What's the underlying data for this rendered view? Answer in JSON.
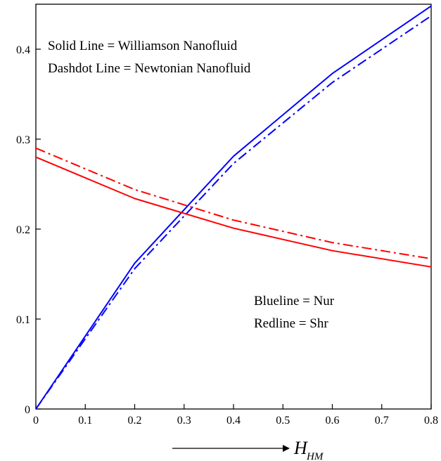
{
  "chart_data": {
    "type": "line",
    "xlabel": "H",
    "xlabel_sub": "HM",
    "ylabel": "",
    "xlim": [
      0,
      0.8
    ],
    "ylim": [
      0,
      0.45
    ],
    "x_ticks": [
      0,
      0.1,
      0.2,
      0.3,
      0.4,
      0.5,
      0.6,
      0.7,
      0.8
    ],
    "x_tick_labels": [
      "0",
      "0.1",
      "0.2",
      "0.3",
      "0.4",
      "0.5",
      "0.6",
      "0.7",
      "0.8"
    ],
    "y_ticks": [
      0,
      0.1,
      0.2,
      0.3,
      0.4
    ],
    "y_tick_labels": [
      "0",
      "0.1",
      "0.2",
      "0.3",
      "0.4"
    ],
    "grid": false,
    "annotations": [
      "Solid Line = Williamson Nanofluid",
      "Dashdot Line = Newtonian Nanofluid",
      "Blueline = Nur",
      "Redline = Shr"
    ],
    "series": [
      {
        "color": "#0000ff",
        "style": "solid",
        "x": [
          0,
          0.2,
          0.4,
          0.6,
          0.8
        ],
        "y": [
          0,
          0.162,
          0.281,
          0.373,
          0.448
        ]
      },
      {
        "color": "#0000ff",
        "style": "dashdot",
        "x": [
          0,
          0.2,
          0.4,
          0.6,
          0.8
        ],
        "y": [
          0,
          0.156,
          0.273,
          0.363,
          0.437
        ]
      },
      {
        "color": "#ff0000",
        "style": "solid",
        "x": [
          0,
          0.2,
          0.4,
          0.6,
          0.8
        ],
        "y": [
          0.28,
          0.234,
          0.201,
          0.176,
          0.158
        ]
      },
      {
        "color": "#ff0000",
        "style": "dashdot",
        "x": [
          0,
          0.2,
          0.4,
          0.6,
          0.8
        ],
        "y": [
          0.29,
          0.244,
          0.21,
          0.185,
          0.167
        ]
      }
    ]
  }
}
